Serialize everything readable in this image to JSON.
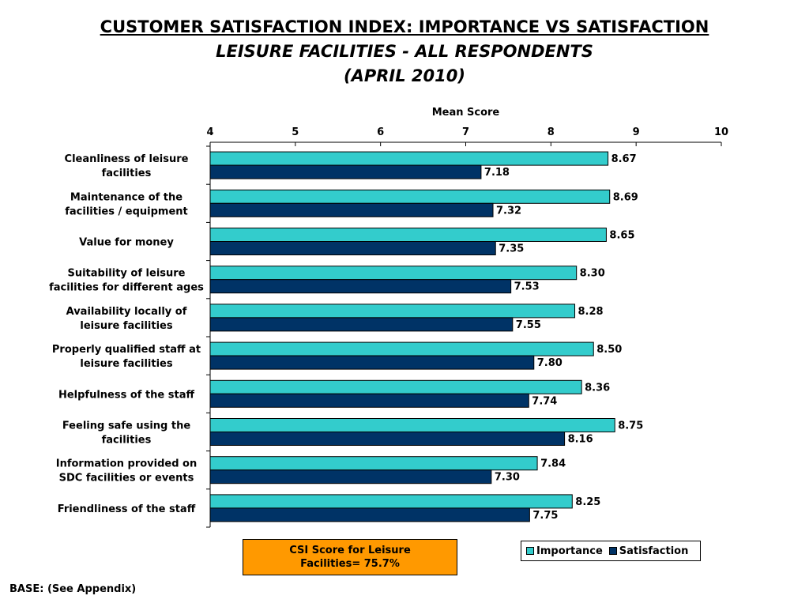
{
  "titles": {
    "line1": "CUSTOMER SATISFACTION INDEX: IMPORTANCE VS SATISFACTION",
    "line2": "LEISURE FACILITIES - ALL RESPONDENTS",
    "line3": "(APRIL 2010)"
  },
  "csi_box": {
    "line1": "CSI Score for Leisure",
    "line2": "Facilities= 75.7%"
  },
  "footer": {
    "base": "BASE: (See Appendix)"
  },
  "colors": {
    "importance": "#33cccc",
    "satisfaction": "#003366",
    "csi_box": "#ff9900"
  },
  "chart_data": {
    "type": "bar",
    "orientation": "horizontal",
    "xlabel": "Mean Score",
    "xlim": [
      4,
      10
    ],
    "xticks": [
      "4",
      "5",
      "6",
      "7",
      "8",
      "9",
      "10"
    ],
    "grid": false,
    "legend_position": "bottom-right",
    "categories": [
      [
        "Cleanliness of leisure",
        "facilities"
      ],
      [
        "Maintenance of the",
        "facilities / equipment"
      ],
      [
        "Value for money"
      ],
      [
        "Suitability of leisure",
        "facilities for different ages"
      ],
      [
        "Availability locally of",
        "leisure facilities"
      ],
      [
        "Properly qualified staff at",
        "leisure facilities"
      ],
      [
        "Helpfulness of the staff"
      ],
      [
        "Feeling safe using the",
        "facilities"
      ],
      [
        "Information provided on",
        "SDC facilities or events"
      ],
      [
        "Friendliness of the staff"
      ]
    ],
    "series": [
      {
        "name": "Importance",
        "values": [
          8.67,
          8.69,
          8.65,
          8.3,
          8.28,
          8.5,
          8.36,
          8.75,
          7.84,
          8.25
        ],
        "labels": [
          "8.67",
          "8.69",
          "8.65",
          "8.30",
          "8.28",
          "8.50",
          "8.36",
          "8.75",
          "7.84",
          "8.25"
        ]
      },
      {
        "name": "Satisfaction",
        "values": [
          7.18,
          7.32,
          7.35,
          7.53,
          7.55,
          7.8,
          7.74,
          8.16,
          7.3,
          7.75
        ],
        "labels": [
          "7.18",
          "7.32",
          "7.35",
          "7.53",
          "7.55",
          "7.80",
          "7.74",
          "8.16",
          "7.30",
          "7.75"
        ]
      }
    ]
  }
}
